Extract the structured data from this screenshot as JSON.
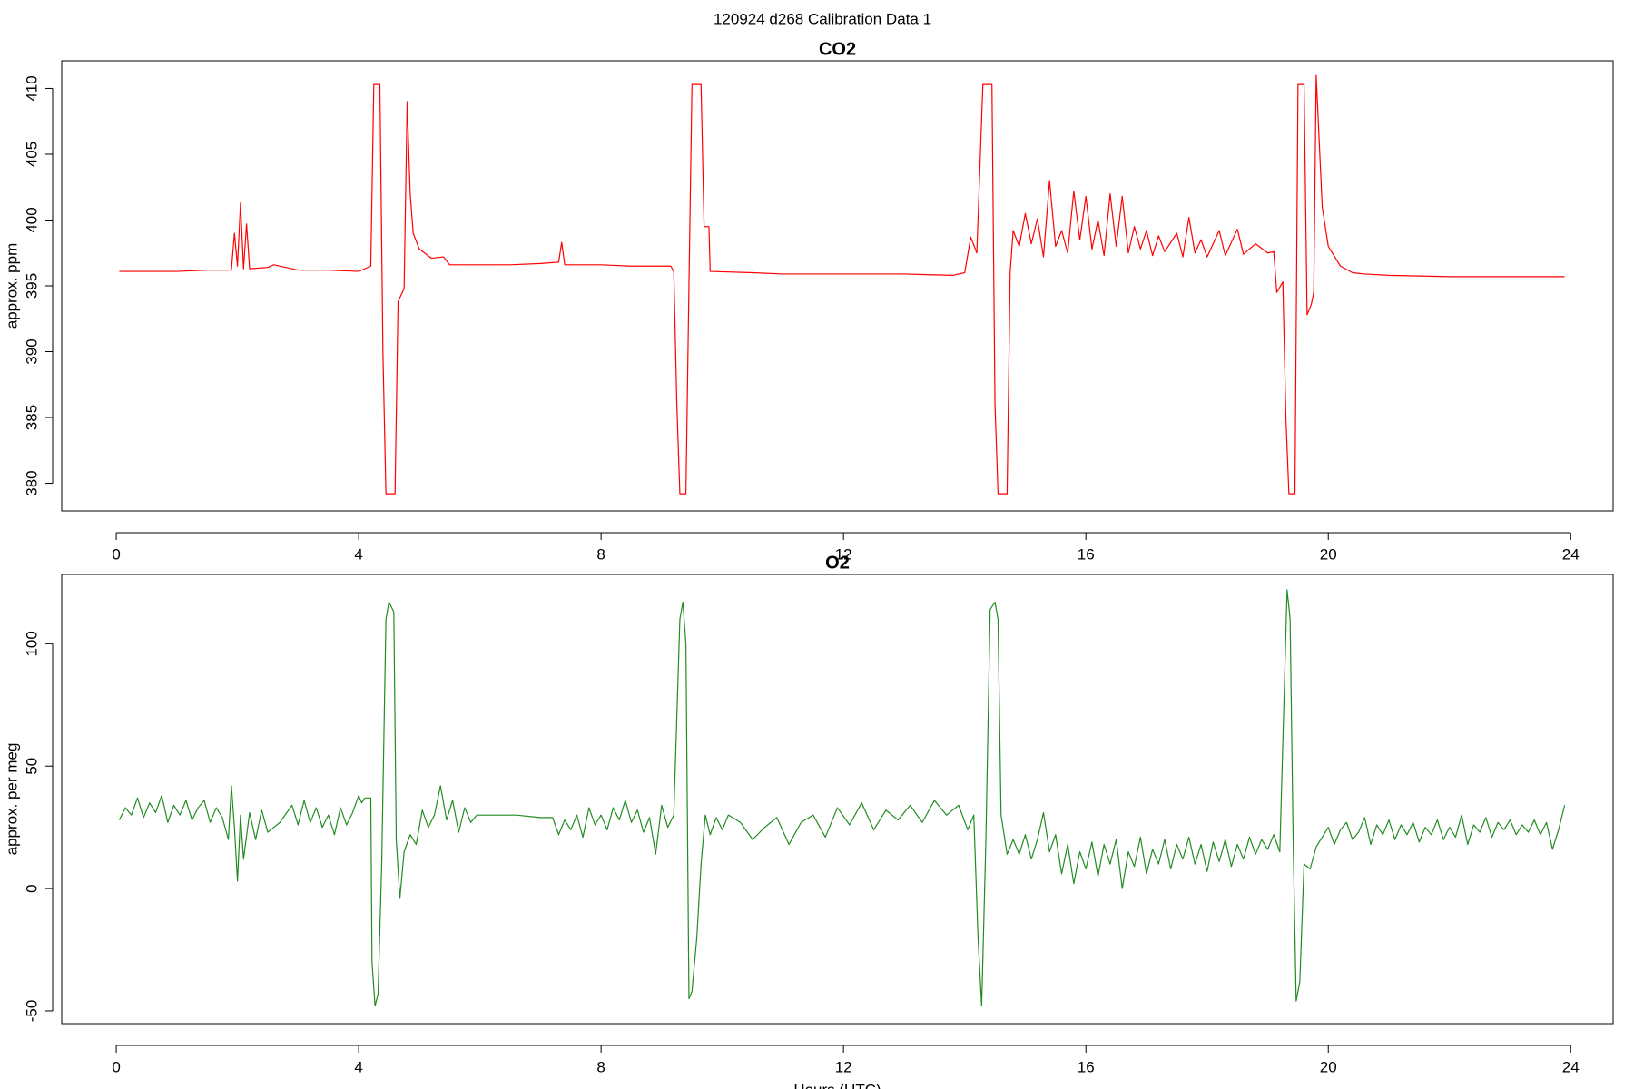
{
  "title": "120924   d268   Calibration Data 1",
  "chart_data": [
    {
      "type": "line",
      "title": "CO2",
      "ylabel": "approx. ppm",
      "color": "#ff0000",
      "xlim": [
        -0.9,
        24.7
      ],
      "ylim": [
        377.9,
        412.1
      ],
      "xticks": [
        0,
        4,
        8,
        12,
        16,
        20,
        24
      ],
      "yticks": [
        380,
        385,
        390,
        395,
        400,
        405,
        410
      ],
      "x": [
        0.05,
        0.5,
        1,
        1.5,
        1.9,
        1.95,
        2.0,
        2.05,
        2.1,
        2.15,
        2.2,
        2.5,
        2.6,
        3,
        3.5,
        4.0,
        4.2,
        4.25,
        4.35,
        4.4,
        4.45,
        4.6,
        4.65,
        4.75,
        4.8,
        4.85,
        4.9,
        5.0,
        5.2,
        5.4,
        5.5,
        6,
        6.5,
        7,
        7.3,
        7.35,
        7.4,
        8,
        8.5,
        9,
        9.15,
        9.2,
        9.25,
        9.3,
        9.4,
        9.45,
        9.5,
        9.65,
        9.7,
        9.78,
        9.8,
        10.5,
        11,
        12,
        13,
        13.8,
        14.0,
        14.1,
        14.2,
        14.3,
        14.45,
        14.5,
        14.55,
        14.7,
        14.75,
        14.8,
        14.9,
        15,
        15.1,
        15.2,
        15.3,
        15.4,
        15.5,
        15.6,
        15.7,
        15.8,
        15.9,
        16,
        16.1,
        16.2,
        16.3,
        16.4,
        16.5,
        16.6,
        16.7,
        16.8,
        16.9,
        17,
        17.1,
        17.2,
        17.3,
        17.5,
        17.6,
        17.7,
        17.8,
        17.9,
        18,
        18.2,
        18.3,
        18.5,
        18.6,
        18.8,
        19,
        19.1,
        19.15,
        19.25,
        19.3,
        19.35,
        19.45,
        19.5,
        19.6,
        19.65,
        19.72,
        19.76,
        19.8,
        19.9,
        20.0,
        20.2,
        20.4,
        20.6,
        21,
        22,
        23,
        23.9
      ],
      "values": [
        396.1,
        396.1,
        396.1,
        396.2,
        396.2,
        399,
        396.5,
        401.3,
        396.3,
        399.7,
        396.3,
        396.4,
        396.6,
        396.2,
        396.2,
        396.1,
        396.5,
        410.3,
        410.3,
        390,
        379.2,
        379.2,
        393.8,
        394.8,
        409,
        402,
        399,
        397.8,
        397.1,
        397.2,
        396.6,
        396.6,
        396.6,
        396.7,
        396.8,
        398.3,
        396.6,
        396.6,
        396.5,
        396.5,
        396.5,
        396.1,
        386,
        379.2,
        379.2,
        395,
        410.3,
        410.3,
        399.5,
        399.5,
        396.1,
        396,
        395.9,
        395.9,
        395.9,
        395.8,
        396,
        398.7,
        397.5,
        410.3,
        410.3,
        386,
        379.2,
        379.2,
        396,
        399.2,
        398,
        400.5,
        398.2,
        400.1,
        397.2,
        403,
        398,
        399.2,
        397.5,
        402.2,
        398.5,
        401.8,
        397.8,
        400,
        397.3,
        402,
        398,
        401.8,
        397.5,
        399.5,
        397.8,
        399.2,
        397.3,
        398.8,
        397.6,
        399,
        397.2,
        400.2,
        397.5,
        398.5,
        397.2,
        399.2,
        397.3,
        399.3,
        397.4,
        398.2,
        397.5,
        397.6,
        394.5,
        395.3,
        385,
        379.2,
        379.2,
        410.3,
        410.3,
        392.8,
        393.6,
        394.5,
        411,
        401,
        398,
        396.5,
        396,
        395.9,
        395.8,
        395.7,
        395.7,
        395.7
      ]
    },
    {
      "type": "line",
      "title": "O2",
      "ylabel": "approx. per meg",
      "xlabel": "Hours (UTC)",
      "color": "#228b22",
      "xlim": [
        -0.9,
        24.7
      ],
      "ylim": [
        -55.2,
        128.3
      ],
      "xticks": [
        0,
        4,
        8,
        12,
        16,
        20,
        24
      ],
      "yticks": [
        -50,
        0,
        50,
        100
      ],
      "x": [
        0.05,
        0.15,
        0.25,
        0.35,
        0.45,
        0.55,
        0.65,
        0.75,
        0.85,
        0.95,
        1.05,
        1.15,
        1.25,
        1.35,
        1.45,
        1.55,
        1.65,
        1.75,
        1.85,
        1.9,
        1.95,
        2.0,
        2.05,
        2.1,
        2.2,
        2.3,
        2.4,
        2.5,
        2.7,
        2.9,
        3.0,
        3.1,
        3.2,
        3.3,
        3.4,
        3.5,
        3.6,
        3.7,
        3.8,
        3.9,
        4.0,
        4.05,
        4.1,
        4.2,
        4.22,
        4.27,
        4.32,
        4.38,
        4.45,
        4.5,
        4.58,
        4.62,
        4.68,
        4.75,
        4.85,
        4.95,
        5.05,
        5.15,
        5.25,
        5.35,
        5.45,
        5.55,
        5.65,
        5.75,
        5.85,
        5.95,
        6.3,
        6.6,
        7.0,
        7.2,
        7.3,
        7.4,
        7.5,
        7.6,
        7.7,
        7.8,
        7.9,
        8.0,
        8.1,
        8.2,
        8.3,
        8.4,
        8.5,
        8.6,
        8.7,
        8.8,
        8.9,
        9.0,
        9.1,
        9.2,
        9.25,
        9.3,
        9.35,
        9.4,
        9.45,
        9.5,
        9.58,
        9.65,
        9.72,
        9.8,
        9.9,
        10.0,
        10.1,
        10.3,
        10.5,
        10.7,
        10.9,
        11.1,
        11.3,
        11.5,
        11.7,
        11.9,
        12.1,
        12.3,
        12.5,
        12.7,
        12.9,
        13.1,
        13.3,
        13.5,
        13.7,
        13.9,
        14.05,
        14.15,
        14.22,
        14.28,
        14.35,
        14.42,
        14.5,
        14.55,
        14.6,
        14.7,
        14.8,
        14.9,
        15.0,
        15.1,
        15.2,
        15.3,
        15.4,
        15.5,
        15.6,
        15.7,
        15.8,
        15.9,
        16.0,
        16.1,
        16.2,
        16.3,
        16.4,
        16.5,
        16.6,
        16.7,
        16.8,
        16.9,
        17.0,
        17.1,
        17.2,
        17.3,
        17.4,
        17.5,
        17.6,
        17.7,
        17.8,
        17.9,
        18.0,
        18.1,
        18.2,
        18.3,
        18.4,
        18.5,
        18.6,
        18.7,
        18.8,
        18.9,
        19.0,
        19.1,
        19.2,
        19.25,
        19.32,
        19.37,
        19.42,
        19.47,
        19.53,
        19.6,
        19.7,
        19.8,
        19.9,
        20.0,
        20.1,
        20.2,
        20.3,
        20.4,
        20.5,
        20.6,
        20.7,
        20.8,
        20.9,
        21.0,
        21.1,
        21.2,
        21.3,
        21.4,
        21.5,
        21.6,
        21.7,
        21.8,
        21.9,
        22.0,
        22.1,
        22.2,
        22.3,
        22.4,
        22.5,
        22.6,
        22.7,
        22.8,
        22.9,
        23.0,
        23.1,
        23.2,
        23.3,
        23.4,
        23.5,
        23.6,
        23.7,
        23.8,
        23.9
      ],
      "values": [
        28,
        33,
        30,
        37,
        29,
        35,
        31,
        38,
        27,
        34,
        30,
        36,
        28,
        33,
        36,
        27,
        33,
        29,
        20,
        42,
        25,
        3,
        30,
        12,
        31,
        20,
        32,
        23,
        27,
        34,
        26,
        36,
        27,
        33,
        25,
        30,
        22,
        33,
        26,
        31,
        38,
        35,
        37,
        37,
        -30,
        -48,
        -43,
        10,
        110,
        117,
        113,
        20,
        -4,
        15,
        22,
        18,
        32,
        25,
        30,
        42,
        28,
        36,
        23,
        33,
        27,
        30,
        30,
        30,
        29,
        29,
        22,
        28,
        24,
        30,
        21,
        33,
        26,
        30,
        24,
        33,
        28,
        36,
        27,
        32,
        23,
        29,
        14,
        34,
        25,
        30,
        70,
        110,
        117,
        100,
        -45,
        -42,
        -20,
        10,
        30,
        22,
        29,
        24,
        30,
        27,
        20,
        25,
        29,
        18,
        27,
        30,
        21,
        33,
        26,
        35,
        24,
        32,
        28,
        34,
        27,
        36,
        30,
        34,
        24,
        30,
        -20,
        -48,
        20,
        114,
        117,
        110,
        30,
        14,
        20,
        14,
        22,
        12,
        20,
        31,
        15,
        22,
        6,
        18,
        2,
        15,
        8,
        19,
        5,
        18,
        10,
        20,
        0,
        15,
        9,
        21,
        6,
        16,
        10,
        20,
        8,
        18,
        12,
        21,
        10,
        18,
        7,
        19,
        11,
        20,
        9,
        18,
        12,
        21,
        14,
        20,
        16,
        22,
        15,
        60,
        122,
        110,
        20,
        -46,
        -38,
        10,
        8,
        17,
        21,
        25,
        18,
        24,
        27,
        20,
        23,
        29,
        18,
        26,
        22,
        28,
        20,
        26,
        22,
        27,
        19,
        25,
        22,
        28,
        20,
        25,
        21,
        30,
        18,
        26,
        23,
        29,
        21,
        27,
        24,
        28,
        22,
        26,
        23,
        28,
        22,
        27,
        16,
        24,
        34
      ]
    }
  ]
}
